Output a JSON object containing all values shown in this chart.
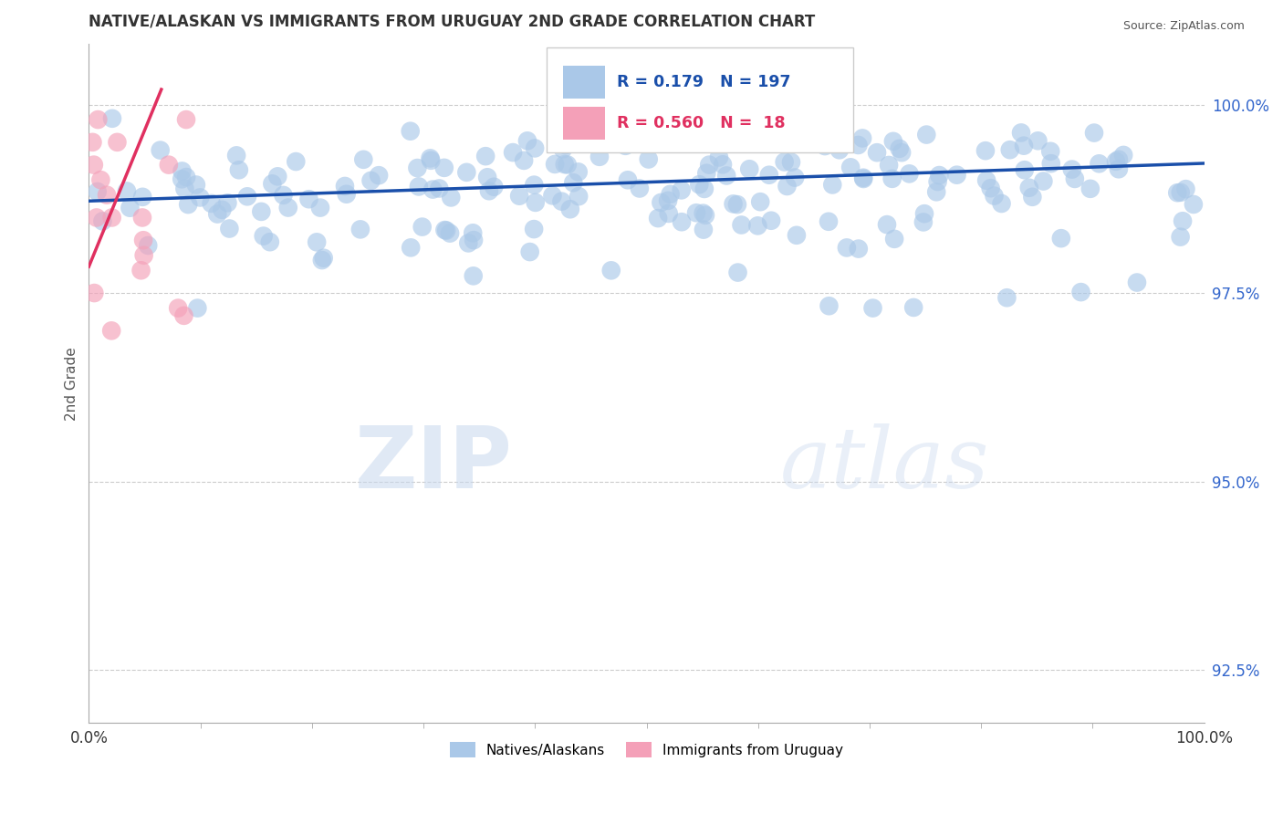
{
  "title": "NATIVE/ALASKAN VS IMMIGRANTS FROM URUGUAY 2ND GRADE CORRELATION CHART",
  "source_text": "Source: ZipAtlas.com",
  "ylabel": "2nd Grade",
  "xlim": [
    0.0,
    100.0
  ],
  "ylim": [
    91.8,
    100.8
  ],
  "yticks": [
    92.5,
    95.0,
    97.5,
    100.0
  ],
  "xticks": [
    0.0,
    100.0
  ],
  "xtick_labels": [
    "0.0%",
    "100.0%"
  ],
  "ytick_labels": [
    "92.5%",
    "95.0%",
    "97.5%",
    "100.0%"
  ],
  "R_native": 0.179,
  "N_native": 197,
  "R_uruguay": 0.56,
  "N_uruguay": 18,
  "native_color": "#aac8e8",
  "uruguay_color": "#f4a0b8",
  "native_line_color": "#1a4faa",
  "uruguay_line_color": "#e03060",
  "legend_label_native": "Natives/Alaskans",
  "legend_label_uruguay": "Immigrants from Uruguay",
  "watermark_zip": "ZIP",
  "watermark_atlas": "atlas",
  "background_color": "#ffffff",
  "grid_color": "#cccccc",
  "native_line_start_y": 98.72,
  "native_line_end_y": 99.22,
  "uruguay_line_start_x": 0.0,
  "uruguay_line_start_y": 97.85,
  "uruguay_line_end_x": 6.5,
  "uruguay_line_end_y": 100.2
}
